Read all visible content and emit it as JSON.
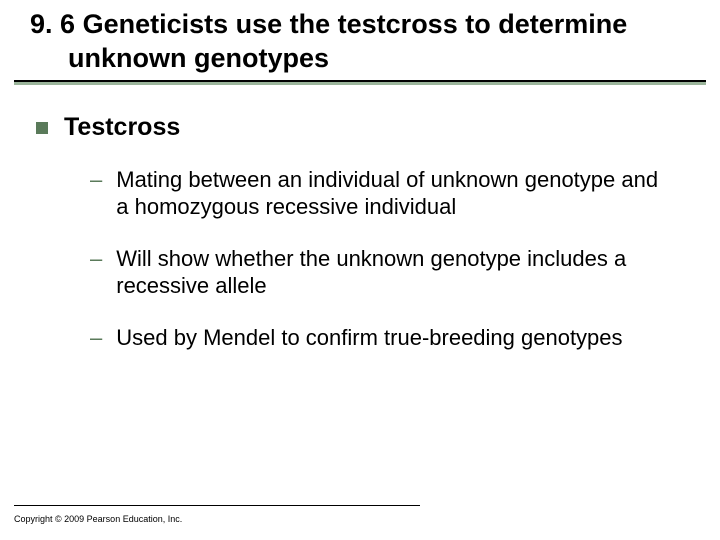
{
  "colors": {
    "background": "#ffffff",
    "text": "#000000",
    "accent_rule": "#9bb59b",
    "bullet_square": "#5a7a5a",
    "dash": "#5a7a5a"
  },
  "typography": {
    "title_fontsize": 27,
    "title_weight": "bold",
    "topitem_fontsize": 25,
    "topitem_weight": "bold",
    "subitem_fontsize": 22,
    "copyright_fontsize": 9,
    "font_family": "Arial"
  },
  "title": {
    "number": "9. 6",
    "text": "Geneticists use the testcross to determine unknown genotypes"
  },
  "bullets": {
    "top": {
      "label": "Testcross"
    },
    "subs": [
      {
        "text": "Mating between an individual of unknown genotype and a homozygous recessive individual"
      },
      {
        "text": "Will show whether the unknown genotype includes a recessive allele"
      },
      {
        "text": "Used by Mendel to confirm true-breeding genotypes"
      }
    ]
  },
  "footer": {
    "copyright": "Copyright © 2009 Pearson Education, Inc."
  }
}
